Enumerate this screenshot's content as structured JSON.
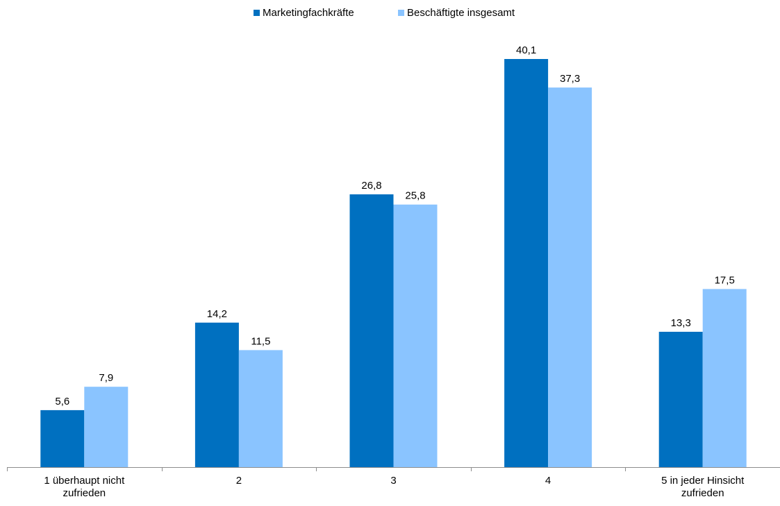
{
  "chart_data": {
    "type": "bar",
    "categories": [
      [
        "1 überhaupt nicht",
        "zufrieden"
      ],
      [
        "2"
      ],
      [
        "3"
      ],
      [
        "4"
      ],
      [
        "5 in jeder Hinsicht",
        "zufrieden"
      ]
    ],
    "series": [
      {
        "name": "Marketingfachkräfte",
        "color": "#0070C0",
        "values": [
          5.6,
          14.2,
          26.8,
          40.1,
          13.3
        ],
        "labels": [
          "5,6",
          "14,2",
          "26,8",
          "40,1",
          "13,3"
        ]
      },
      {
        "name": "Beschäftigte insgesamt",
        "color": "#8AC4FF",
        "values": [
          7.9,
          11.5,
          25.8,
          37.3,
          17.5
        ],
        "labels": [
          "7,9",
          "11,5",
          "25,8",
          "37,3",
          "17,5"
        ]
      }
    ],
    "title": "",
    "xlabel": "",
    "ylabel": "",
    "ylim": [
      0,
      43
    ],
    "grid": false,
    "legend_position": "top-center"
  }
}
